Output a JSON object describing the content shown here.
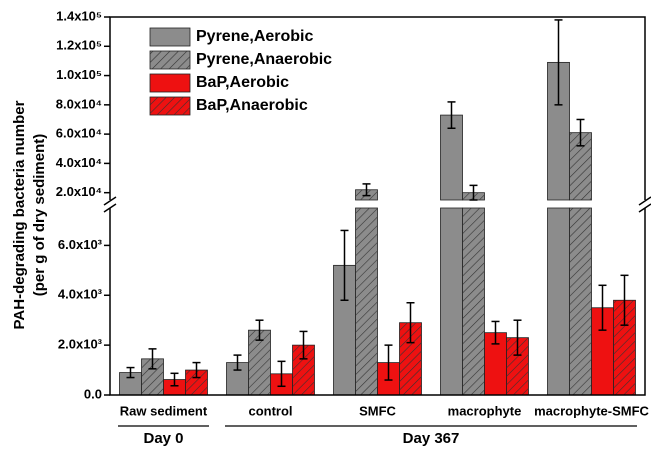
{
  "chart_data": {
    "type": "bar",
    "ylabel": [
      "PAH-degrading bacteria number",
      "(per g of dry sediment)"
    ],
    "categories": [
      "Raw sediment",
      "control",
      "SMFC",
      "macrophyte",
      "macrophyte-SMFC"
    ],
    "groups": [
      {
        "label": "Day 0",
        "from": 0,
        "to": 0
      },
      {
        "label": "Day 367",
        "from": 1,
        "to": 4
      }
    ],
    "series": [
      {
        "name": "Pyrene,Aerobic",
        "color": "#8c8c8c",
        "hatch": false,
        "values": [
          900,
          1300,
          5200,
          73000,
          109000
        ],
        "errors": [
          200,
          300,
          1400,
          9000,
          29000
        ]
      },
      {
        "name": "Pyrene,Anaerobic",
        "color": "#8c8c8c",
        "hatch": true,
        "values": [
          1450,
          2600,
          22000,
          20000,
          61000
        ],
        "errors": [
          400,
          400,
          4000,
          5000,
          9000
        ]
      },
      {
        "name": "BaP,Aerobic",
        "color": "#ee1111",
        "hatch": false,
        "values": [
          620,
          850,
          1300,
          2500,
          3500
        ],
        "errors": [
          250,
          500,
          700,
          450,
          900
        ]
      },
      {
        "name": "BaP,Anaerobic",
        "color": "#ee1111",
        "hatch": true,
        "values": [
          1000,
          2000,
          2900,
          2300,
          3800
        ],
        "errors": [
          300,
          550,
          800,
          700,
          1000
        ]
      }
    ],
    "segments": [
      {
        "ylim": [
          0,
          7500
        ],
        "yticks": [
          {
            "value": 0,
            "label": "0.0"
          },
          {
            "value": 2000,
            "label": "2.0x10³"
          },
          {
            "value": 4000,
            "label": "4.0x10³"
          },
          {
            "value": 6000,
            "label": "6.0x10³"
          }
        ]
      },
      {
        "ylim": [
          15000,
          140000
        ],
        "yticks": [
          {
            "value": 20000,
            "label": "2.0x10⁴"
          },
          {
            "value": 40000,
            "label": "4.0x10⁴"
          },
          {
            "value": 60000,
            "label": "6.0x10⁴"
          },
          {
            "value": 80000,
            "label": "8.0x10⁴"
          },
          {
            "value": 100000,
            "label": "1.0x10⁵"
          },
          {
            "value": 120000,
            "label": "1.2x10⁵"
          },
          {
            "value": 140000,
            "label": "1.4x10⁵"
          }
        ]
      }
    ]
  }
}
